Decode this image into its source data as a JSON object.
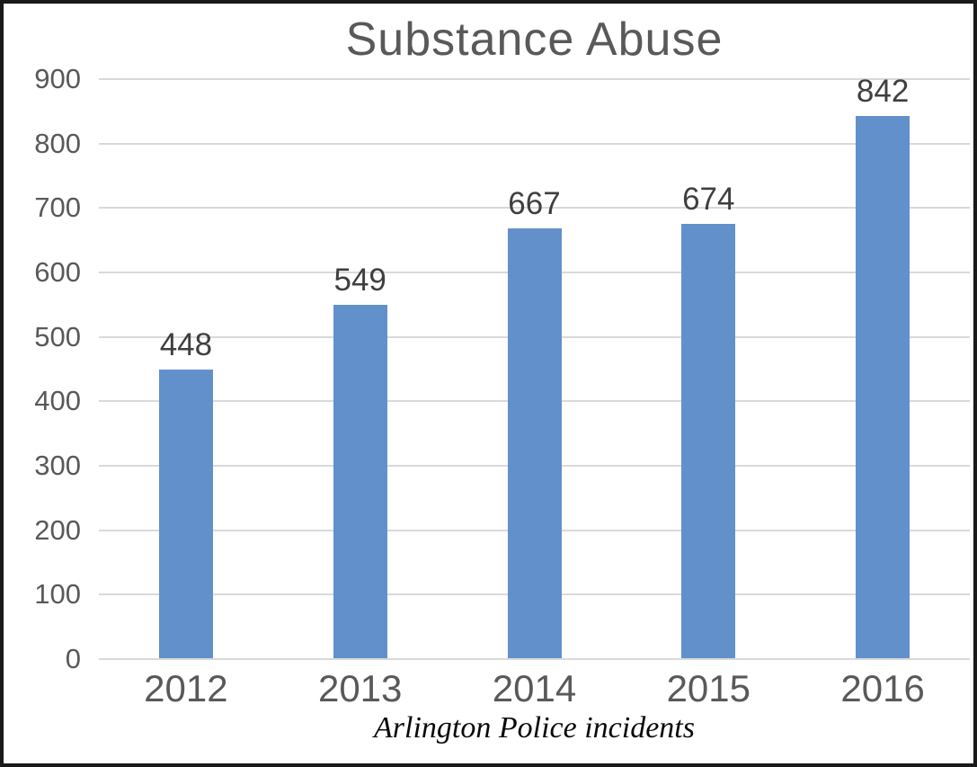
{
  "chart_data": {
    "type": "bar",
    "title": "Substance Abuse",
    "caption": "Arlington Police incidents",
    "categories": [
      "2012",
      "2013",
      "2014",
      "2015",
      "2016"
    ],
    "values": [
      448,
      549,
      667,
      674,
      842
    ],
    "xlabel": "",
    "ylabel": "",
    "ylim": [
      0,
      900
    ],
    "ytick_step": 100,
    "yticks": [
      0,
      100,
      200,
      300,
      400,
      500,
      600,
      700,
      800,
      900
    ],
    "grid": "horizontal",
    "legend_position": "none",
    "colors": {
      "bar_fill": "#6290cb",
      "gridline": "#d9d9d9",
      "axis_text": "#595959",
      "value_label_text": "#3f3f3f",
      "title_text": "#595959",
      "caption_text": "#0a0a0a",
      "frame_border": "#1a1a1a",
      "background": "#ffffff"
    }
  }
}
